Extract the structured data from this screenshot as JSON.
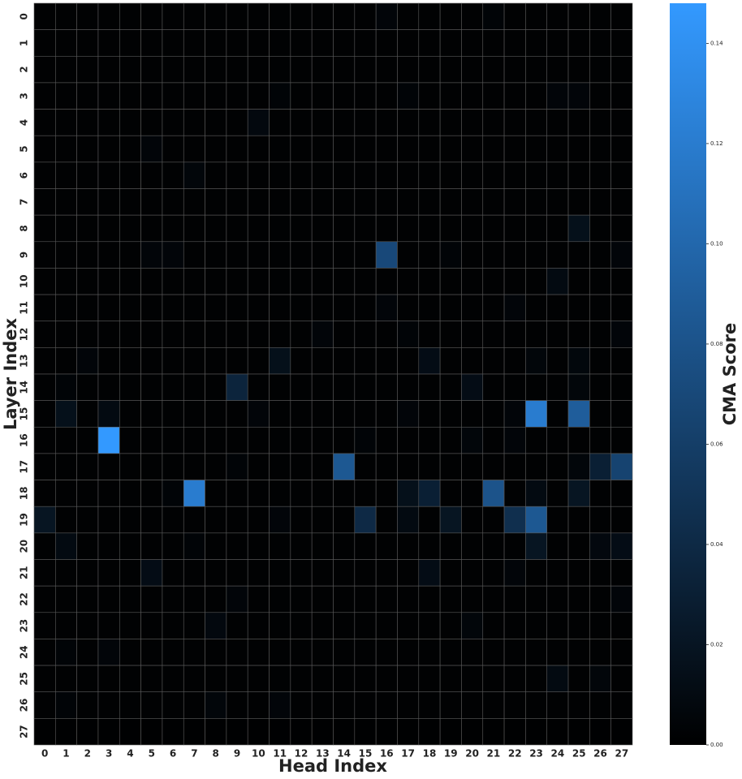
{
  "chart_data": {
    "type": "heatmap",
    "xlabel": "Head Index",
    "ylabel": "Layer Index",
    "colorbar_label": "CMA Score",
    "x": [
      0,
      1,
      2,
      3,
      4,
      5,
      6,
      7,
      8,
      9,
      10,
      11,
      12,
      13,
      14,
      15,
      16,
      17,
      18,
      19,
      20,
      21,
      22,
      23,
      24,
      25,
      26,
      27
    ],
    "y": [
      0,
      1,
      2,
      3,
      4,
      5,
      6,
      7,
      8,
      9,
      10,
      11,
      12,
      13,
      14,
      15,
      16,
      17,
      18,
      19,
      20,
      21,
      22,
      23,
      24,
      25,
      26,
      27
    ],
    "cmap": [
      "#000000",
      "#3399ff"
    ],
    "grid_color": "#5a5a5a",
    "zlim": [
      0,
      0.148
    ],
    "zticks": [
      {
        "value": 0,
        "label": "0.00"
      },
      {
        "value": 0.02,
        "label": "0.02"
      },
      {
        "value": 0.04,
        "label": "0.04"
      },
      {
        "value": 0.06,
        "label": "0.06"
      },
      {
        "value": 0.08,
        "label": "0.08"
      },
      {
        "value": 0.1,
        "label": "0.10"
      },
      {
        "value": 0.12,
        "label": "0.12"
      },
      {
        "value": 0.14,
        "label": "0.14"
      }
    ],
    "z": [
      [
        0.002,
        0.002,
        0.002,
        0.002,
        0.002,
        0.002,
        0.002,
        0.002,
        0.002,
        0.002,
        0.002,
        0.002,
        0.002,
        0.002,
        0.002,
        0.002,
        0.005,
        0.002,
        0.002,
        0.002,
        0.002,
        0.004,
        0.002,
        0.002,
        0.002,
        0.002,
        0.002,
        0.002
      ],
      [
        0.002,
        0.002,
        0.002,
        0.002,
        0.002,
        0.002,
        0.002,
        0.002,
        0.002,
        0.002,
        0.002,
        0.002,
        0.002,
        0.002,
        0.002,
        0.002,
        0.002,
        0.002,
        0.002,
        0.002,
        0.002,
        0.002,
        0.002,
        0.002,
        0.002,
        0.002,
        0.002,
        0.002
      ],
      [
        0.002,
        0.002,
        0.002,
        0.002,
        0.002,
        0.002,
        0.002,
        0.002,
        0.002,
        0.002,
        0.002,
        0.002,
        0.002,
        0.002,
        0.002,
        0.002,
        0.002,
        0.002,
        0.002,
        0.002,
        0.002,
        0.002,
        0.002,
        0.002,
        0.002,
        0.002,
        0.002,
        0.002
      ],
      [
        0.002,
        0.002,
        0.002,
        0.002,
        0.002,
        0.002,
        0.002,
        0.002,
        0.002,
        0.002,
        0.002,
        0.004,
        0.002,
        0.002,
        0.002,
        0.002,
        0.002,
        0.004,
        0.002,
        0.002,
        0.002,
        0.002,
        0.002,
        0.002,
        0.005,
        0.005,
        0.002,
        0.002
      ],
      [
        0.002,
        0.002,
        0.002,
        0.002,
        0.002,
        0.002,
        0.002,
        0.002,
        0.002,
        0.002,
        0.008,
        0.002,
        0.002,
        0.002,
        0.002,
        0.002,
        0.002,
        0.002,
        0.002,
        0.002,
        0.002,
        0.002,
        0.002,
        0.002,
        0.002,
        0.002,
        0.002,
        0.002
      ],
      [
        0.002,
        0.002,
        0.002,
        0.002,
        0.002,
        0.005,
        0.002,
        0.002,
        0.002,
        0.002,
        0.002,
        0.002,
        0.002,
        0.002,
        0.002,
        0.002,
        0.002,
        0.002,
        0.002,
        0.002,
        0.002,
        0.002,
        0.002,
        0.002,
        0.002,
        0.002,
        0.002,
        0.002
      ],
      [
        0.002,
        0.002,
        0.002,
        0.002,
        0.002,
        0.002,
        0.002,
        0.006,
        0.002,
        0.002,
        0.002,
        0.002,
        0.002,
        0.002,
        0.002,
        0.002,
        0.002,
        0.002,
        0.002,
        0.002,
        0.002,
        0.002,
        0.002,
        0.002,
        0.002,
        0.002,
        0.002,
        0.002
      ],
      [
        0.002,
        0.002,
        0.002,
        0.002,
        0.002,
        0.002,
        0.002,
        0.002,
        0.002,
        0.002,
        0.002,
        0.002,
        0.002,
        0.002,
        0.002,
        0.002,
        0.002,
        0.002,
        0.002,
        0.002,
        0.002,
        0.002,
        0.002,
        0.002,
        0.002,
        0.002,
        0.002,
        0.002
      ],
      [
        0.002,
        0.002,
        0.002,
        0.002,
        0.002,
        0.002,
        0.002,
        0.002,
        0.002,
        0.002,
        0.002,
        0.002,
        0.002,
        0.002,
        0.002,
        0.002,
        0.002,
        0.002,
        0.002,
        0.002,
        0.002,
        0.002,
        0.002,
        0.002,
        0.002,
        0.015,
        0.002,
        0.002
      ],
      [
        0.002,
        0.002,
        0.002,
        0.002,
        0.002,
        0.005,
        0.005,
        0.002,
        0.002,
        0.002,
        0.002,
        0.002,
        0.002,
        0.002,
        0.002,
        0.002,
        0.07,
        0.002,
        0.002,
        0.004,
        0.002,
        0.002,
        0.002,
        0.002,
        0.002,
        0.002,
        0.002,
        0.005
      ],
      [
        0.002,
        0.002,
        0.002,
        0.002,
        0.002,
        0.002,
        0.002,
        0.002,
        0.002,
        0.002,
        0.002,
        0.002,
        0.002,
        0.002,
        0.002,
        0.002,
        0.002,
        0.002,
        0.002,
        0.002,
        0.002,
        0.002,
        0.002,
        0.002,
        0.01,
        0.002,
        0.002,
        0.002
      ],
      [
        0.002,
        0.002,
        0.002,
        0.002,
        0.002,
        0.002,
        0.002,
        0.002,
        0.002,
        0.002,
        0.002,
        0.002,
        0.002,
        0.002,
        0.002,
        0.002,
        0.005,
        0.002,
        0.002,
        0.002,
        0.002,
        0.002,
        0.005,
        0.002,
        0.002,
        0.002,
        0.002,
        0.002
      ],
      [
        0.002,
        0.002,
        0.002,
        0.002,
        0.002,
        0.002,
        0.002,
        0.002,
        0.002,
        0.002,
        0.002,
        0.002,
        0.002,
        0.005,
        0.002,
        0.002,
        0.002,
        0.004,
        0.002,
        0.002,
        0.002,
        0.002,
        0.002,
        0.002,
        0.002,
        0.002,
        0.002,
        0.005
      ],
      [
        0.002,
        0.002,
        0.005,
        0.002,
        0.002,
        0.002,
        0.002,
        0.002,
        0.002,
        0.002,
        0.002,
        0.015,
        0.002,
        0.002,
        0.002,
        0.002,
        0.002,
        0.002,
        0.012,
        0.002,
        0.002,
        0.002,
        0.002,
        0.006,
        0.002,
        0.007,
        0.002,
        0.002
      ],
      [
        0.002,
        0.004,
        0.002,
        0.002,
        0.002,
        0.002,
        0.002,
        0.002,
        0.002,
        0.035,
        0.002,
        0.002,
        0.002,
        0.002,
        0.002,
        0.002,
        0.002,
        0.002,
        0.002,
        0.002,
        0.012,
        0.002,
        0.002,
        0.002,
        0.002,
        0.006,
        0.002,
        0.002
      ],
      [
        0.002,
        0.015,
        0.002,
        0.01,
        0.002,
        0.002,
        0.002,
        0.002,
        0.002,
        0.002,
        0.005,
        0.002,
        0.002,
        0.002,
        0.002,
        0.002,
        0.002,
        0.005,
        0.002,
        0.002,
        0.002,
        0.002,
        0.005,
        0.12,
        0.002,
        0.09,
        0.002,
        0.002
      ],
      [
        0.002,
        0.002,
        0.002,
        0.148,
        0.002,
        0.002,
        0.002,
        0.002,
        0.002,
        0.002,
        0.002,
        0.002,
        0.002,
        0.002,
        0.002,
        0.004,
        0.002,
        0.002,
        0.002,
        0.002,
        0.006,
        0.002,
        0.005,
        0.002,
        0.002,
        0.002,
        0.002,
        0.002
      ],
      [
        0.002,
        0.002,
        0.002,
        0.002,
        0.002,
        0.002,
        0.002,
        0.002,
        0.002,
        0.004,
        0.002,
        0.002,
        0.002,
        0.002,
        0.085,
        0.002,
        0.002,
        0.002,
        0.002,
        0.002,
        0.002,
        0.002,
        0.002,
        0.002,
        0.002,
        0.006,
        0.03,
        0.065
      ],
      [
        0.002,
        0.002,
        0.002,
        0.002,
        0.002,
        0.002,
        0.004,
        0.12,
        0.002,
        0.002,
        0.002,
        0.002,
        0.002,
        0.002,
        0.002,
        0.002,
        0.002,
        0.015,
        0.03,
        0.002,
        0.002,
        0.08,
        0.002,
        0.01,
        0.002,
        0.02,
        0.002,
        0.002
      ],
      [
        0.02,
        0.002,
        0.002,
        0.002,
        0.002,
        0.002,
        0.002,
        0.002,
        0.002,
        0.002,
        0.002,
        0.005,
        0.002,
        0.002,
        0.002,
        0.04,
        0.002,
        0.01,
        0.002,
        0.02,
        0.002,
        0.002,
        0.045,
        0.085,
        0.002,
        0.002,
        0.002,
        0.002
      ],
      [
        0.002,
        0.01,
        0.002,
        0.002,
        0.002,
        0.002,
        0.002,
        0.004,
        0.002,
        0.002,
        0.002,
        0.002,
        0.002,
        0.002,
        0.002,
        0.002,
        0.002,
        0.002,
        0.002,
        0.002,
        0.002,
        0.002,
        0.002,
        0.02,
        0.002,
        0.002,
        0.008,
        0.012
      ],
      [
        0.002,
        0.002,
        0.002,
        0.002,
        0.002,
        0.012,
        0.002,
        0.002,
        0.002,
        0.002,
        0.002,
        0.002,
        0.002,
        0.002,
        0.002,
        0.002,
        0.002,
        0.002,
        0.012,
        0.002,
        0.002,
        0.002,
        0.005,
        0.002,
        0.002,
        0.002,
        0.002,
        0.002
      ],
      [
        0.002,
        0.002,
        0.002,
        0.002,
        0.002,
        0.002,
        0.002,
        0.002,
        0.002,
        0.005,
        0.002,
        0.002,
        0.002,
        0.002,
        0.002,
        0.002,
        0.002,
        0.002,
        0.002,
        0.002,
        0.002,
        0.002,
        0.002,
        0.002,
        0.002,
        0.002,
        0.002,
        0.005
      ],
      [
        0.002,
        0.002,
        0.002,
        0.002,
        0.002,
        0.002,
        0.002,
        0.002,
        0.008,
        0.002,
        0.002,
        0.002,
        0.002,
        0.002,
        0.002,
        0.002,
        0.002,
        0.002,
        0.002,
        0.002,
        0.006,
        0.002,
        0.002,
        0.002,
        0.002,
        0.002,
        0.002,
        0.002
      ],
      [
        0.002,
        0.004,
        0.002,
        0.005,
        0.002,
        0.002,
        0.002,
        0.002,
        0.002,
        0.002,
        0.002,
        0.002,
        0.002,
        0.002,
        0.002,
        0.002,
        0.002,
        0.002,
        0.002,
        0.002,
        0.002,
        0.002,
        0.002,
        0.002,
        0.002,
        0.002,
        0.002,
        0.002
      ],
      [
        0.002,
        0.002,
        0.002,
        0.002,
        0.002,
        0.002,
        0.002,
        0.002,
        0.002,
        0.002,
        0.002,
        0.002,
        0.002,
        0.002,
        0.002,
        0.002,
        0.002,
        0.002,
        0.002,
        0.002,
        0.002,
        0.002,
        0.002,
        0.002,
        0.01,
        0.002,
        0.006,
        0.002
      ],
      [
        0.002,
        0.004,
        0.002,
        0.002,
        0.002,
        0.002,
        0.002,
        0.002,
        0.006,
        0.002,
        0.002,
        0.005,
        0.002,
        0.002,
        0.002,
        0.002,
        0.002,
        0.002,
        0.002,
        0.002,
        0.002,
        0.002,
        0.002,
        0.002,
        0.002,
        0.002,
        0.002,
        0.002
      ],
      [
        0.001,
        0.001,
        0.001,
        0.001,
        0.001,
        0.001,
        0.001,
        0.001,
        0.001,
        0.001,
        0.001,
        0.001,
        0.001,
        0.001,
        0.001,
        0.001,
        0.001,
        0.001,
        0.001,
        0.001,
        0.001,
        0.001,
        0.001,
        0.001,
        0.001,
        0.001,
        0.001,
        0.001
      ]
    ]
  }
}
